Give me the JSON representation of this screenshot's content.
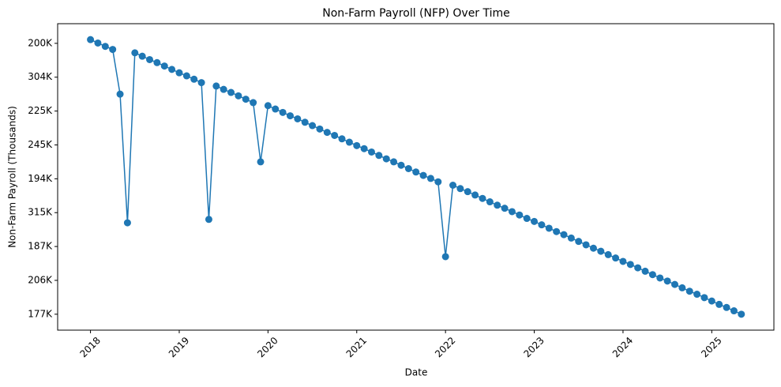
{
  "chart_data": {
    "type": "line",
    "title": "Non-Farm Payroll (NFP) Over Time",
    "x_label": "Date",
    "y_label": "Non-Farm Payroll (Thousands)",
    "x": [
      "2018-01",
      "2018-02",
      "2018-03",
      "2018-04",
      "2018-05",
      "2018-06",
      "2018-07",
      "2018-08",
      "2018-09",
      "2018-10",
      "2018-11",
      "2018-12",
      "2019-01",
      "2019-02",
      "2019-03",
      "2019-04",
      "2019-05",
      "2019-06",
      "2019-07",
      "2019-08",
      "2019-09",
      "2019-10",
      "2019-11",
      "2019-12",
      "2020-01",
      "2020-02",
      "2020-03",
      "2020-04",
      "2020-05",
      "2020-06",
      "2020-07",
      "2020-08",
      "2020-09",
      "2020-10",
      "2020-11",
      "2020-12",
      "2021-01",
      "2021-02",
      "2021-03",
      "2021-04",
      "2021-05",
      "2021-06",
      "2021-07",
      "2021-08",
      "2021-09",
      "2021-10",
      "2021-11",
      "2021-12",
      "2022-01",
      "2022-02",
      "2022-03",
      "2022-04",
      "2022-05",
      "2022-06",
      "2022-07",
      "2022-08",
      "2022-09",
      "2022-10",
      "2022-11",
      "2022-12",
      "2023-01",
      "2023-02",
      "2023-03",
      "2023-04",
      "2023-05",
      "2023-06",
      "2023-07",
      "2023-08",
      "2023-09",
      "2023-10",
      "2023-11",
      "2023-12",
      "2024-01",
      "2024-02",
      "2024-03",
      "2024-04",
      "2024-05",
      "2024-06",
      "2024-07",
      "2024-08",
      "2024-09",
      "2024-10",
      "2024-11",
      "2024-12",
      "2025-01",
      "2025-02",
      "2025-03",
      "2025-04",
      "2025-05"
    ],
    "series": [
      {
        "color": "#1f77b4",
        "values": [
          8.11,
          8.01,
          7.91,
          7.82,
          6.5,
          2.7,
          7.72,
          7.62,
          7.52,
          7.43,
          7.33,
          7.23,
          7.13,
          7.04,
          6.94,
          6.84,
          2.8,
          6.74,
          6.64,
          6.55,
          6.45,
          6.35,
          6.25,
          4.5,
          6.16,
          6.06,
          5.96,
          5.86,
          5.77,
          5.67,
          5.57,
          5.47,
          5.37,
          5.28,
          5.18,
          5.08,
          4.98,
          4.89,
          4.79,
          4.69,
          4.59,
          4.5,
          4.4,
          4.3,
          4.2,
          4.1,
          4.01,
          3.91,
          1.7,
          3.81,
          3.71,
          3.62,
          3.52,
          3.42,
          3.32,
          3.22,
          3.13,
          3.03,
          2.93,
          2.83,
          2.74,
          2.64,
          2.54,
          2.44,
          2.35,
          2.25,
          2.15,
          2.05,
          1.95,
          1.86,
          1.76,
          1.66,
          1.56,
          1.47,
          1.37,
          1.27,
          1.17,
          1.07,
          0.98,
          0.88,
          0.78,
          0.68,
          0.59,
          0.49,
          0.39,
          0.29,
          0.2,
          0.1,
          0.0
        ]
      }
    ],
    "xlim": [
      2017.63,
      2025.7
    ],
    "xticks": [
      2018,
      2019,
      2020,
      2021,
      2022,
      2023,
      2024,
      2025
    ],
    "ylim": [
      -0.47,
      8.58
    ],
    "yticks": [
      {
        "value": 0,
        "label": "177K"
      },
      {
        "value": 1,
        "label": "206K"
      },
      {
        "value": 2,
        "label": "187K"
      },
      {
        "value": 3,
        "label": "315K"
      },
      {
        "value": 4,
        "label": "194K"
      },
      {
        "value": 5,
        "label": "245K"
      },
      {
        "value": 6,
        "label": "225K"
      },
      {
        "value": 7,
        "label": "304K"
      },
      {
        "value": 8,
        "label": "200K"
      }
    ]
  }
}
